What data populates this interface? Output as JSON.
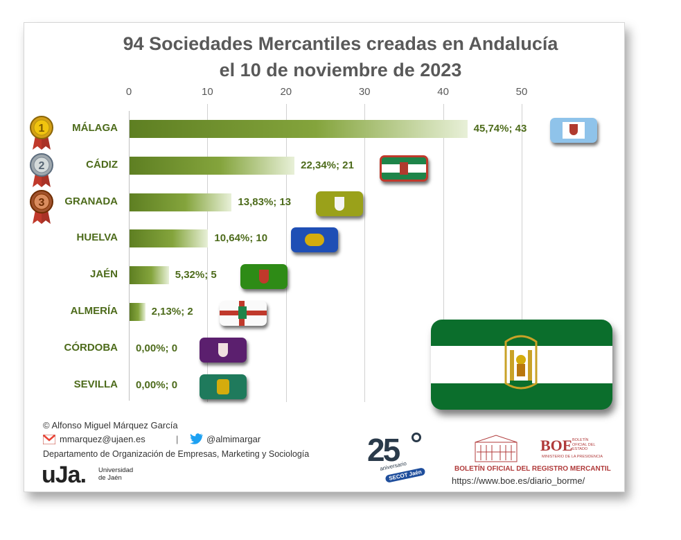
{
  "title": {
    "line1": "94 Sociedades Mercantiles creadas en Andalucía",
    "line2": "el 10 de noviembre de 2023"
  },
  "chart_data": {
    "type": "bar",
    "orientation": "horizontal",
    "categories": [
      "MÁLAGA",
      "CÁDIZ",
      "GRANADA",
      "HUELVA",
      "JAÉN",
      "ALMERÍA",
      "CÓRDOBA",
      "SEVILLA"
    ],
    "values": [
      43,
      21,
      13,
      10,
      5,
      2,
      0,
      0
    ],
    "labels": [
      "45,74%; 43",
      "22,34%; 21",
      "13,83%; 13",
      "10,64%; 10",
      "5,32%; 5",
      "2,13%; 2",
      "0,00%; 0",
      "0,00%; 0"
    ],
    "xlim": [
      0,
      50
    ],
    "xticks": [
      "0",
      "10",
      "20",
      "30",
      "40",
      "50"
    ],
    "grid": true,
    "bar_color": "#6b8e23"
  },
  "medals": [
    "1",
    "2",
    "3"
  ],
  "footer": {
    "author": "© Alfonso Miguel Márquez García",
    "email": "mmarquez@ujaen.es",
    "separator": "|",
    "twitter": "@almimargar",
    "department": "Departamento de Organización de Empresas, Marketing y Sociología",
    "uja_logo": "uJa.",
    "uja_name_line1": "Universidad",
    "uja_name_line2": "de Jaén",
    "secot_number": "25",
    "secot_line1": "aniversario",
    "secot_line2": "SECOT Jaén",
    "boe_logo": "BOE",
    "boe_side_text": "BOLETÍN OFICIAL DEL ESTADO",
    "boe_ministry": "MINISTERIO DE LA PRESIDENCIA",
    "borme": "BOLETÍN OFICIAL DEL REGISTRO MERCANTIL",
    "url": "https://www.boe.es/diario_borme/"
  },
  "icons": [
    "gmail-icon",
    "twitter-icon",
    "medal-gold-icon",
    "medal-silver-icon",
    "medal-bronze-icon",
    "andalucia-flag-icon",
    "building-icon"
  ]
}
